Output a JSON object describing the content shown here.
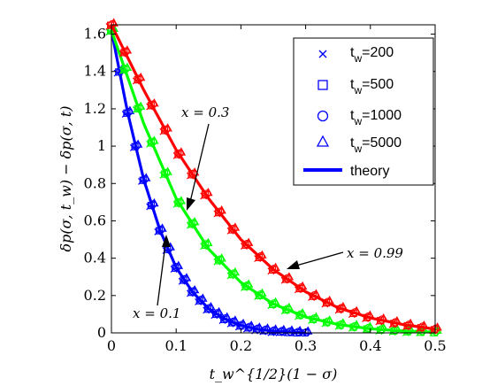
{
  "chart_data": {
    "type": "line",
    "xlabel": "t_w^{1/2}(1 − σ)",
    "ylabel": "δp(σ, t_w) − δp(σ, t)",
    "xlim": [
      0,
      0.5
    ],
    "ylim": [
      0,
      1.65
    ],
    "xticks": [
      "0",
      "0.1",
      "0.2",
      "0.3",
      "0.4",
      "0.5"
    ],
    "yticks": [
      "0",
      "0.2",
      "0.4",
      "0.6",
      "0.8",
      "1",
      "1.2",
      "1.4",
      "1.6"
    ],
    "grid": false,
    "legend_position": "top-right",
    "legend": [
      {
        "marker": "x",
        "label": "t",
        "sub": "w",
        "value": "=200"
      },
      {
        "marker": "square",
        "label": "t",
        "sub": "w",
        "value": "=500"
      },
      {
        "marker": "circle",
        "label": "t",
        "sub": "w",
        "value": "=1000"
      },
      {
        "marker": "triangle",
        "label": "t",
        "sub": "w",
        "value": "=5000"
      },
      {
        "marker": "line",
        "label": "theory",
        "sub": "",
        "value": ""
      }
    ],
    "colors": {
      "x=0.1": "#0000ff",
      "x=0.3": "#00ff00",
      "x=0.99": "#ff0000"
    },
    "series": [
      {
        "group": "x=0.1",
        "x": [
          0,
          0.025,
          0.05,
          0.075,
          0.1,
          0.125,
          0.15,
          0.175,
          0.2,
          0.225,
          0.25,
          0.275,
          0.3
        ],
        "y": [
          1.62,
          1.18,
          0.82,
          0.55,
          0.35,
          0.22,
          0.13,
          0.075,
          0.04,
          0.02,
          0.01,
          0.005,
          0.0
        ]
      },
      {
        "group": "x=0.3",
        "x": [
          0,
          0.05,
          0.1,
          0.15,
          0.2,
          0.25,
          0.3,
          0.35,
          0.4,
          0.45,
          0.5
        ],
        "y": [
          1.62,
          1.12,
          0.72,
          0.45,
          0.27,
          0.155,
          0.085,
          0.045,
          0.022,
          0.01,
          0.004
        ]
      },
      {
        "group": "x=0.99",
        "x": [
          0,
          0.05,
          0.1,
          0.15,
          0.2,
          0.25,
          0.3,
          0.35,
          0.4,
          0.45,
          0.5
        ],
        "y": [
          1.65,
          1.3,
          0.98,
          0.72,
          0.5,
          0.34,
          0.22,
          0.135,
          0.08,
          0.045,
          0.02
        ]
      }
    ],
    "annotations": [
      {
        "text": "x = 0.3"
      },
      {
        "text": "x = 0.99"
      },
      {
        "text": "x = 0.1"
      }
    ]
  }
}
